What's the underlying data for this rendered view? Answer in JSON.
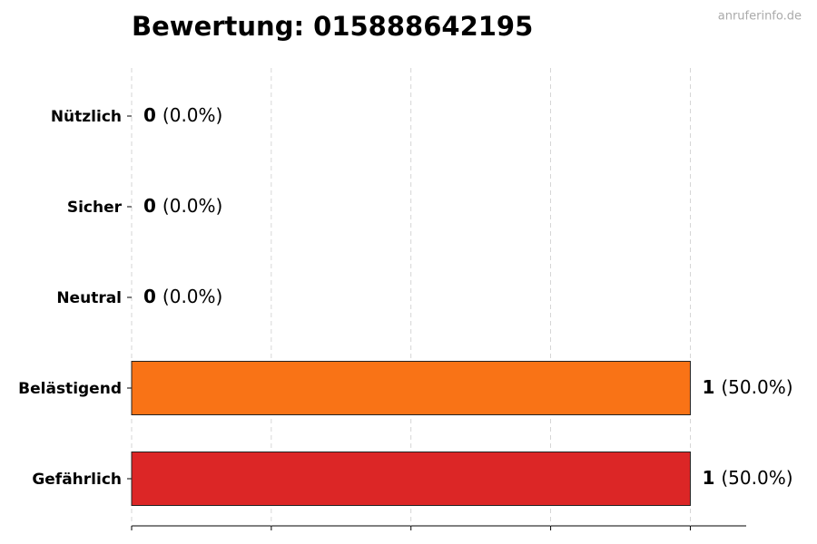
{
  "chart_data": {
    "type": "barh",
    "title": "Bewertung: 015888642195",
    "watermark": "anruferinfo.de",
    "categories": [
      "Nützlich",
      "Sicher",
      "Neutral",
      "Belästigend",
      "Gefährlich"
    ],
    "values": [
      0,
      0,
      0,
      1,
      1
    ],
    "percent_labels": [
      "(0.0%)",
      "(0.0%)",
      "(0.0%)",
      "(50.0%)",
      "(50.0%)"
    ],
    "colors": [
      "#22c55e",
      "#3b82f6",
      "#9ca3af",
      "#f97316",
      "#dc2626"
    ],
    "xlim": [
      0,
      1.1
    ],
    "xticks": [
      0,
      0.25,
      0.5,
      0.75,
      1
    ],
    "grid": true
  }
}
